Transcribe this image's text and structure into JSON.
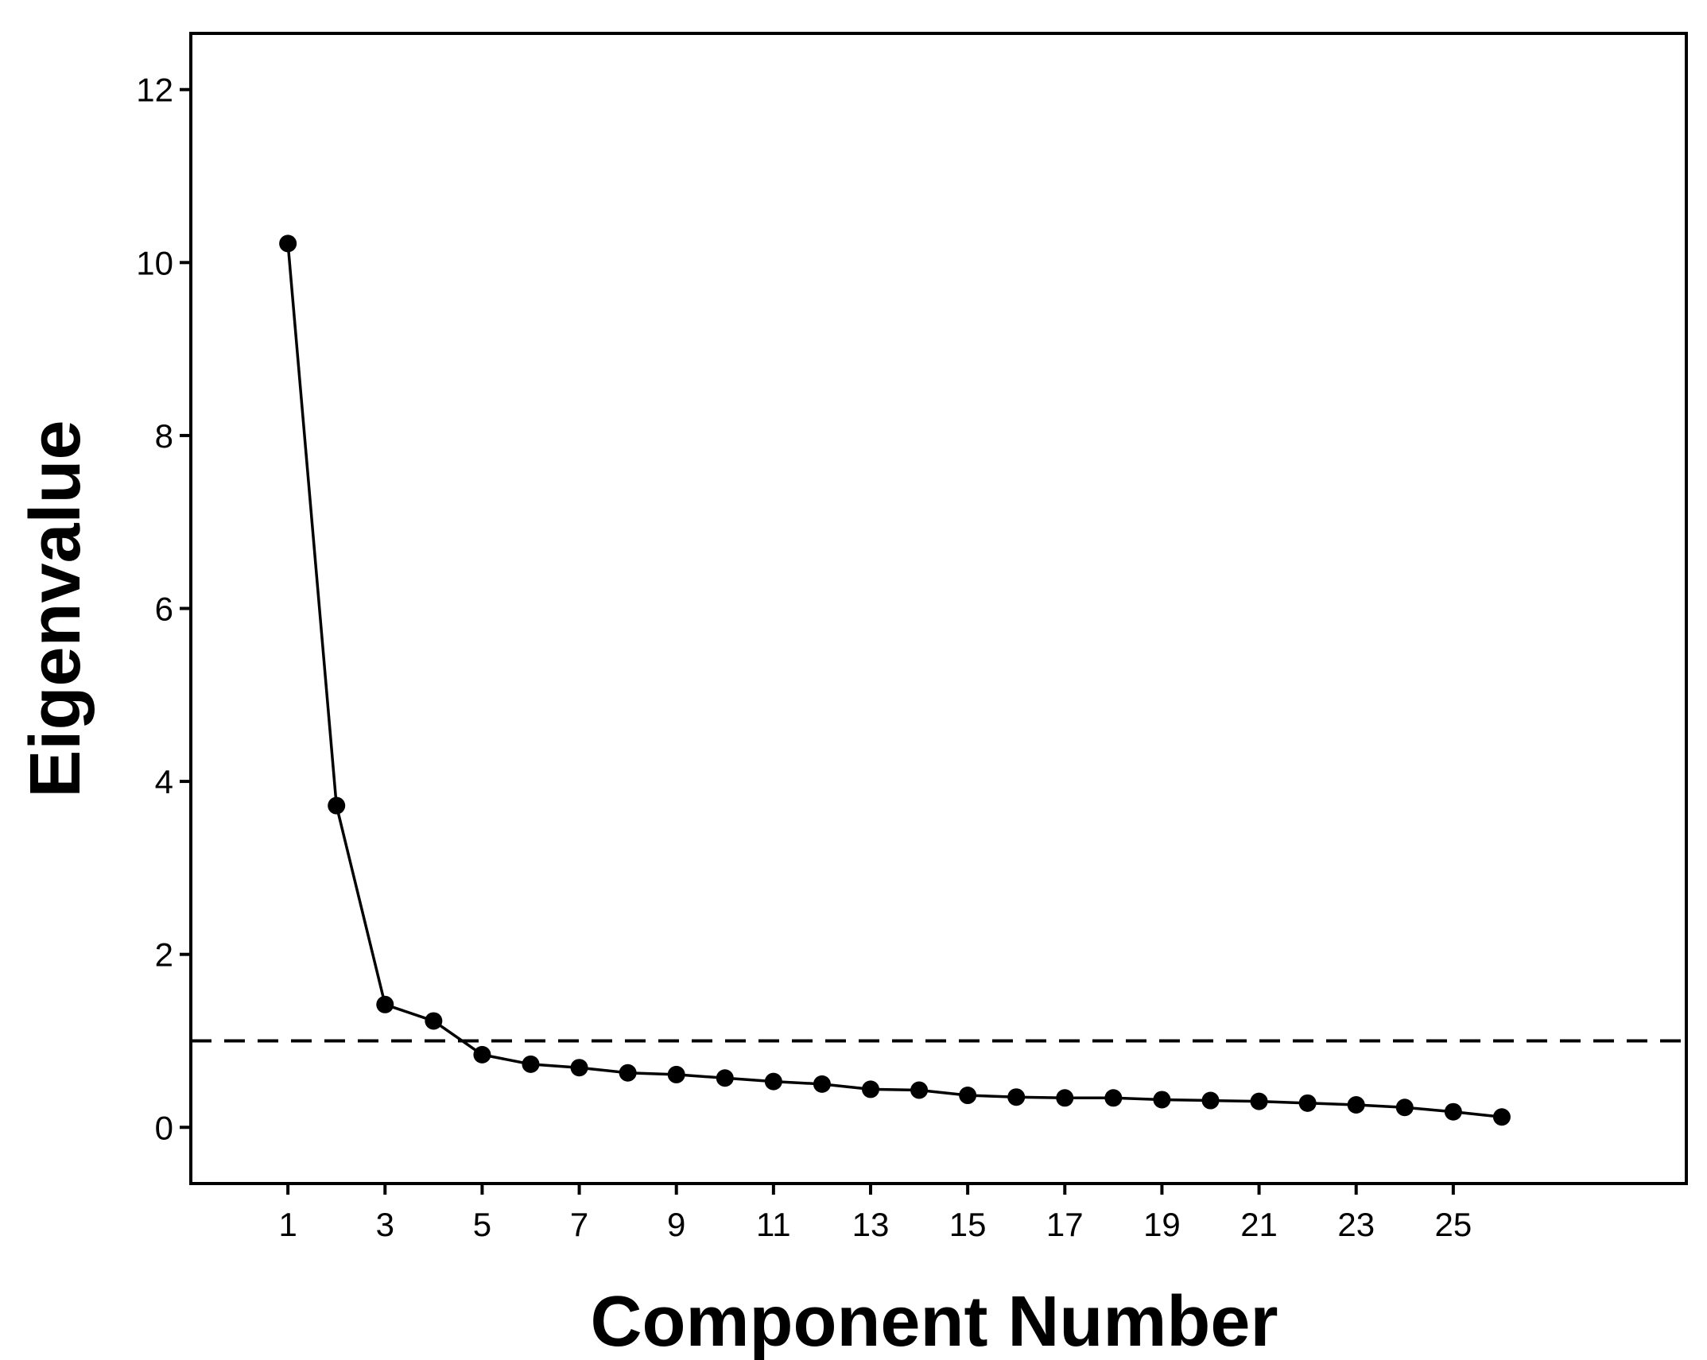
{
  "chart_data": {
    "type": "line",
    "xlabel": "Component Number",
    "ylabel": "Eigenvalue",
    "x": [
      1,
      2,
      3,
      4,
      5,
      6,
      7,
      8,
      9,
      10,
      11,
      12,
      13,
      14,
      15,
      16,
      17,
      18,
      19,
      20,
      21,
      22,
      23,
      24,
      25,
      26
    ],
    "series": [
      {
        "values": [
          10.22,
          3.72,
          1.42,
          1.23,
          0.84,
          0.73,
          0.69,
          0.63,
          0.61,
          0.57,
          0.53,
          0.5,
          0.44,
          0.43,
          0.37,
          0.35,
          0.34,
          0.34,
          0.32,
          0.31,
          0.3,
          0.28,
          0.26,
          0.23,
          0.18,
          0.12
        ]
      }
    ],
    "reference_line": {
      "y": 1,
      "style": "dashed"
    },
    "xlim": [
      -1,
      29.8
    ],
    "ylim": [
      -0.65,
      12.65
    ],
    "xticks": [
      "1",
      "3",
      "5",
      "7",
      "9",
      "11",
      "13",
      "15",
      "17",
      "19",
      "21",
      "23",
      "25"
    ],
    "yticks": [
      "0",
      "2",
      "4",
      "6",
      "8",
      "10",
      "12"
    ],
    "grid": false,
    "colors": {
      "line": "#000000",
      "marker": "#000000",
      "frame": "#000000"
    }
  }
}
